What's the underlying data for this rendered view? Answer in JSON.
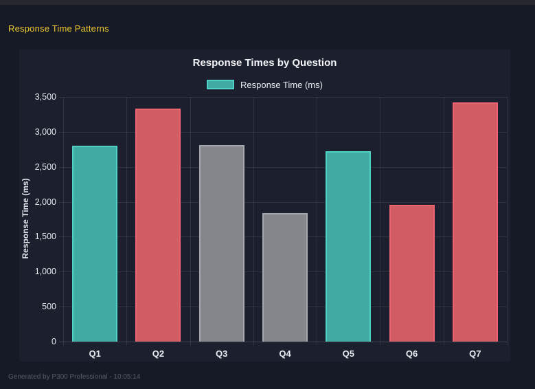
{
  "window": {
    "header_title": "Response Time Patterns",
    "footer": "Generated by P300 Professional - 10:05:14"
  },
  "chart_data": {
    "type": "bar",
    "title": "Response Times by Question",
    "legend": [
      {
        "label": "Response Time (ms)",
        "color_key": "teal"
      }
    ],
    "legend_position": "top",
    "categories": [
      "Q1",
      "Q2",
      "Q3",
      "Q4",
      "Q5",
      "Q6",
      "Q7"
    ],
    "values": [
      2800,
      3330,
      2810,
      1840,
      2720,
      1960,
      3420
    ],
    "bar_color_keys": [
      "teal",
      "red",
      "gray",
      "gray",
      "teal",
      "red",
      "red"
    ],
    "palette": {
      "teal": {
        "fill": "#41aaa2",
        "border": "#4fd1c5"
      },
      "red": {
        "fill": "#d25c63",
        "border": "#ef6370"
      },
      "gray": {
        "fill": "#85858c",
        "border": "#a7a7af"
      }
    },
    "xlabel": "",
    "ylabel": "Response Time (ms)",
    "ylim": [
      0,
      3500
    ],
    "ytick_step": 500,
    "ytick_labels": [
      "0",
      "500",
      "1,000",
      "1,500",
      "2,000",
      "2,500",
      "3,000",
      "3,500"
    ],
    "grid": true
  },
  "theme": {
    "page_bg": "#161a26",
    "panel_bg": "#1c202e",
    "accent_yellow": "#ecc831",
    "text_light": "#e9ebf0"
  }
}
